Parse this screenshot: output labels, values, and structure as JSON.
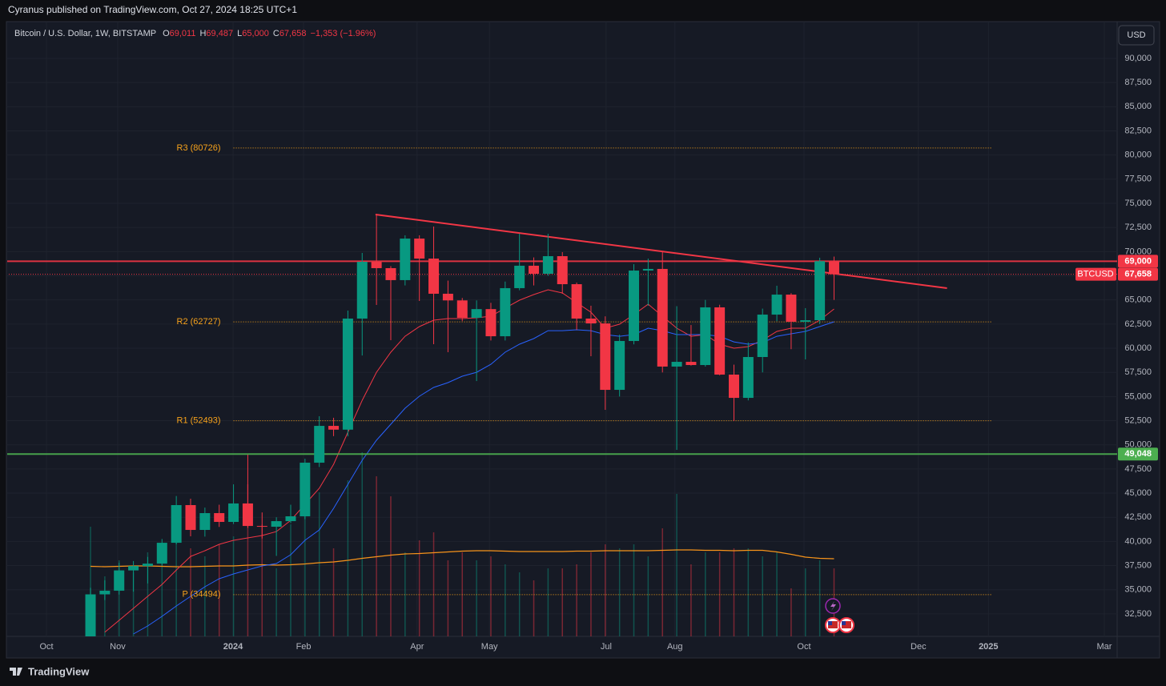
{
  "header": {
    "publisher": "Cyranus published on TradingView.com, Oct 27, 2024 18:25 UTC+1"
  },
  "chart_data": {
    "type": "candlestick",
    "title": "Bitcoin / U.S. Dollar, 1W, BITSTAMP",
    "ohlc_legend": [
      {
        "key": "O",
        "text": "69,011"
      },
      {
        "key": "H",
        "text": "69,487"
      },
      {
        "key": "L",
        "text": "65,000"
      },
      {
        "key": "C",
        "text": "67,658"
      }
    ],
    "change": "−1,353 (−1.96%)",
    "currency": "USD",
    "categories": [
      null,
      null,
      null,
      null,
      null,
      null,
      null,
      null,
      null,
      null,
      null,
      null,
      null,
      null,
      null,
      null,
      null,
      null,
      null,
      null,
      null,
      null,
      null,
      null,
      null,
      null,
      null,
      null,
      null,
      null,
      null,
      null,
      null,
      null,
      null,
      null,
      null,
      null,
      null,
      null,
      null,
      null,
      null,
      null,
      null,
      null,
      null,
      null,
      null,
      null,
      null,
      null,
      null
    ],
    "open": [
      30010,
      34520,
      34900,
      37000,
      37450,
      37700,
      39860,
      43760,
      41190,
      42930,
      42020,
      43930,
      41600,
      41520,
      42100,
      42600,
      48150,
      51960,
      51570,
      63070,
      68950,
      68290,
      67050,
      71350,
      69280,
      65640,
      64950,
      63150,
      64050,
      61240,
      66220,
      68540,
      67710,
      69530,
      66630,
      63070,
      62570,
      55690,
      60750,
      68040,
      68210,
      58100,
      58590,
      58260,
      64230,
      57270,
      54860,
      59090,
      63480,
      65550,
      62740,
      62900,
      69011
    ],
    "high": [
      35200,
      35980,
      37790,
      37970,
      38400,
      40250,
      44700,
      44420,
      43500,
      43800,
      45910,
      48980,
      43000,
      42500,
      43800,
      48560,
      52960,
      52800,
      63900,
      69860,
      73840,
      68500,
      71690,
      71690,
      72600,
      67000,
      65200,
      64950,
      64700,
      66900,
      71850,
      69400,
      71850,
      69950,
      66800,
      64400,
      63300,
      61400,
      68700,
      69280,
      69950,
      64350,
      62400,
      65000,
      64500,
      58300,
      60600,
      64100,
      66470,
      65700,
      64150,
      69370,
      69487
    ],
    "low": [
      29800,
      33930,
      34500,
      34800,
      35650,
      37500,
      39700,
      40530,
      40500,
      41500,
      41800,
      41400,
      40300,
      38500,
      41900,
      42300,
      47700,
      50900,
      50880,
      59250,
      64480,
      60830,
      66500,
      64890,
      60420,
      59590,
      62800,
      56600,
      60800,
      60800,
      66000,
      66500,
      67500,
      65640,
      61900,
      59170,
      53620,
      55000,
      60400,
      64400,
      57500,
      49480,
      58200,
      58100,
      57200,
      52460,
      54600,
      57500,
      62800,
      59900,
      58840,
      62500,
      65000
    ],
    "close": [
      34520,
      34900,
      37000,
      37450,
      37700,
      39860,
      43760,
      41190,
      42930,
      42020,
      43930,
      41600,
      41520,
      42100,
      42600,
      48150,
      51960,
      51570,
      63070,
      68950,
      68290,
      67050,
      71350,
      69280,
      65640,
      64950,
      63150,
      64050,
      61240,
      66220,
      68540,
      67710,
      69530,
      66630,
      63070,
      62570,
      55690,
      60750,
      68040,
      68210,
      58100,
      58590,
      58260,
      64230,
      57270,
      54860,
      59090,
      63480,
      65550,
      62740,
      62900,
      69011,
      67658
    ],
    "up_color": "#089981",
    "down_color": "#f23645",
    "volume": [
      27400,
      15000,
      19000,
      16000,
      21000,
      20000,
      24000,
      22000,
      20000,
      23000,
      25000,
      38000,
      28000,
      17000,
      28000,
      32000,
      36000,
      22000,
      39000,
      46000,
      40000,
      35000,
      21000,
      24000,
      26000,
      19000,
      21000,
      19000,
      20000,
      18000,
      16000,
      14000,
      17000,
      17000,
      18000,
      21000,
      23000,
      22000,
      23000,
      20000,
      27000,
      35600,
      18000,
      21000,
      21000,
      22000,
      22000,
      20000,
      21000,
      12000,
      17000,
      19000,
      17000
    ],
    "vlim": [
      0,
      50000
    ],
    "volume_ma": {
      "color": "#f7931a",
      "values": [
        17500,
        17400,
        17500,
        17600,
        17600,
        17500,
        17400,
        17400,
        17500,
        17600,
        17600,
        17800,
        17900,
        17800,
        17900,
        18100,
        18400,
        18600,
        19000,
        19500,
        19900,
        20300,
        20600,
        20700,
        20900,
        21100,
        21300,
        21400,
        21400,
        21300,
        21200,
        21200,
        21200,
        21200,
        21300,
        21300,
        21400,
        21400,
        21400,
        21400,
        21500,
        21600,
        21600,
        21500,
        21500,
        21400,
        21500,
        21500,
        21100,
        20500,
        19800,
        19500,
        19400
      ]
    },
    "overlays": [
      {
        "color": "#f23645",
        "values": [
          null,
          30600,
          31830,
          33070,
          34310,
          35550,
          37040,
          38450,
          39040,
          39700,
          40110,
          40360,
          40610,
          41020,
          42180,
          43840,
          45500,
          47990,
          51300,
          54610,
          57510,
          59590,
          61240,
          62240,
          62900,
          63070,
          63070,
          63150,
          63320,
          64150,
          64970,
          65550,
          66050,
          65720,
          64720,
          63730,
          62070,
          62490,
          63480,
          64560,
          63320,
          62070,
          61240,
          61410,
          60420,
          60000,
          60170,
          60830,
          61740,
          62070,
          62070,
          62900,
          64060
        ]
      },
      {
        "color": "#2962ff",
        "values": [
          null,
          null,
          null,
          30420,
          31250,
          32240,
          33320,
          34310,
          35310,
          36140,
          36630,
          37050,
          37460,
          37710,
          38620,
          40110,
          41190,
          43430,
          45910,
          48400,
          50470,
          52130,
          53790,
          55030,
          55940,
          56440,
          57100,
          57510,
          58340,
          59590,
          60420,
          61000,
          61820,
          61820,
          61910,
          61820,
          61410,
          61240,
          61410,
          62070,
          61820,
          61410,
          61410,
          61410,
          61240,
          60660,
          60420,
          60580,
          61240,
          61490,
          61740,
          62240,
          62740
        ]
      }
    ],
    "trendline": {
      "color": "#f23645",
      "x": [
        19.93,
        59.9
      ],
      "y": [
        73840,
        66220
      ]
    },
    "levels": [
      {
        "value": 69000,
        "label": "69,000",
        "color": "#f23645",
        "style": "solid"
      },
      {
        "value": 67658,
        "label": "67,658",
        "tag": "BTCUSD",
        "color": "#f23645",
        "style": "dotted"
      },
      {
        "value": 49048,
        "label": "49,048",
        "color": "#4caf50",
        "style": "solid"
      }
    ],
    "pivots": [
      {
        "label": "R3 (80726)",
        "value": 80726
      },
      {
        "label": "R2 (62727)",
        "value": 62727
      },
      {
        "label": "R1 (52493)",
        "value": 52493
      },
      {
        "label": "P (34494)",
        "value": 34494
      }
    ],
    "pivot_range": [
      10,
      63
    ],
    "pivot_color": "#f7a21b",
    "ylim": [
      30170,
      92320
    ],
    "yticks": [
      {
        "value": 32500,
        "label": "32,500"
      },
      {
        "value": 35000,
        "label": "35,000"
      },
      {
        "value": 37500,
        "label": "37,500"
      },
      {
        "value": 40000,
        "label": "40,000"
      },
      {
        "value": 42500,
        "label": "42,500"
      },
      {
        "value": 45000,
        "label": "45,000"
      },
      {
        "value": 47500,
        "label": "47,500"
      },
      {
        "value": 50000,
        "label": "50,000"
      },
      {
        "value": 52500,
        "label": "52,500"
      },
      {
        "value": 55000,
        "label": "55,000"
      },
      {
        "value": 57500,
        "label": "57,500"
      },
      {
        "value": 60000,
        "label": "60,000"
      },
      {
        "value": 62500,
        "label": "62,500"
      },
      {
        "value": 65000,
        "label": "65,000"
      },
      {
        "value": 67500,
        "label": "67,500"
      },
      {
        "value": 70000,
        "label": "70,000"
      },
      {
        "value": 72500,
        "label": "72,500"
      },
      {
        "value": 75000,
        "label": "75,000"
      },
      {
        "value": 77500,
        "label": "77,500"
      },
      {
        "value": 80000,
        "label": "80,000"
      },
      {
        "value": 82500,
        "label": "82,500"
      },
      {
        "value": 85000,
        "label": "85,000"
      },
      {
        "value": 87500,
        "label": "87,500"
      },
      {
        "value": 90000,
        "label": "90,000"
      }
    ],
    "xlim": [
      -5.77,
      71.8
    ],
    "xticks": [
      {
        "value": -3.08,
        "label": "Oct"
      },
      {
        "value": 1.9,
        "label": "Nov"
      },
      {
        "value": 9.97,
        "label": "2024"
      },
      {
        "value": 14.9,
        "label": "Feb"
      },
      {
        "value": 22.84,
        "label": "Apr"
      },
      {
        "value": 27.9,
        "label": "May"
      },
      {
        "value": 36.06,
        "label": "Jul"
      },
      {
        "value": 40.87,
        "label": "Aug"
      },
      {
        "value": 49.9,
        "label": "Oct"
      },
      {
        "value": 57.9,
        "label": "Dec"
      },
      {
        "value": 62.8,
        "label": "2025"
      },
      {
        "value": 70.9,
        "label": "Mar"
      }
    ],
    "grid": true
  },
  "footer": {
    "brand": "TradingView"
  }
}
